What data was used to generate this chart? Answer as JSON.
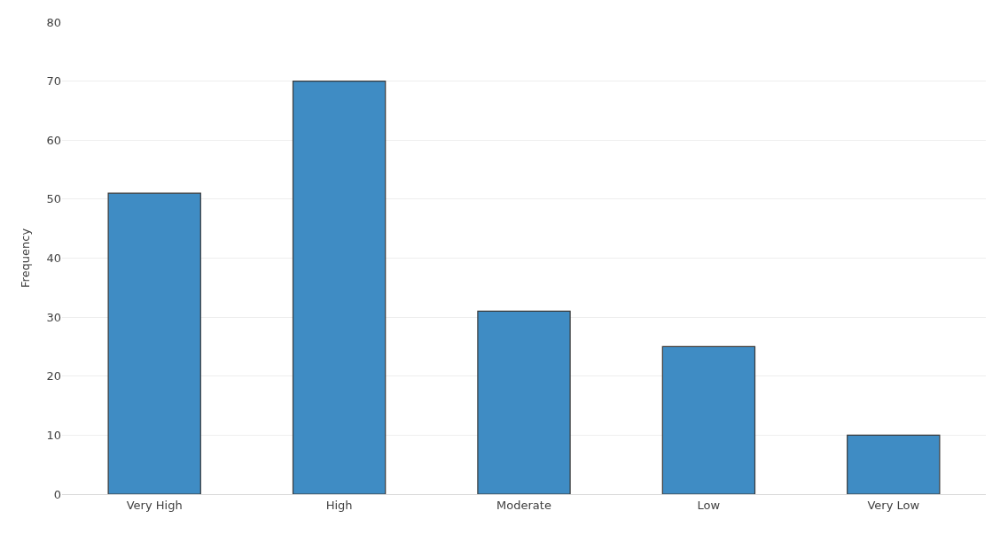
{
  "chart_data": {
    "type": "bar",
    "ylabel": "Frequency",
    "categories": [
      "Very High",
      "High",
      "Moderate",
      "Low",
      "Very Low"
    ],
    "values": [
      51,
      70,
      31,
      25,
      10
    ],
    "color": "#3f8cc4",
    "ylim": [
      0,
      80
    ],
    "yticks": [
      0,
      10,
      20,
      30,
      40,
      50,
      60,
      70,
      80
    ],
    "grid": "y"
  }
}
